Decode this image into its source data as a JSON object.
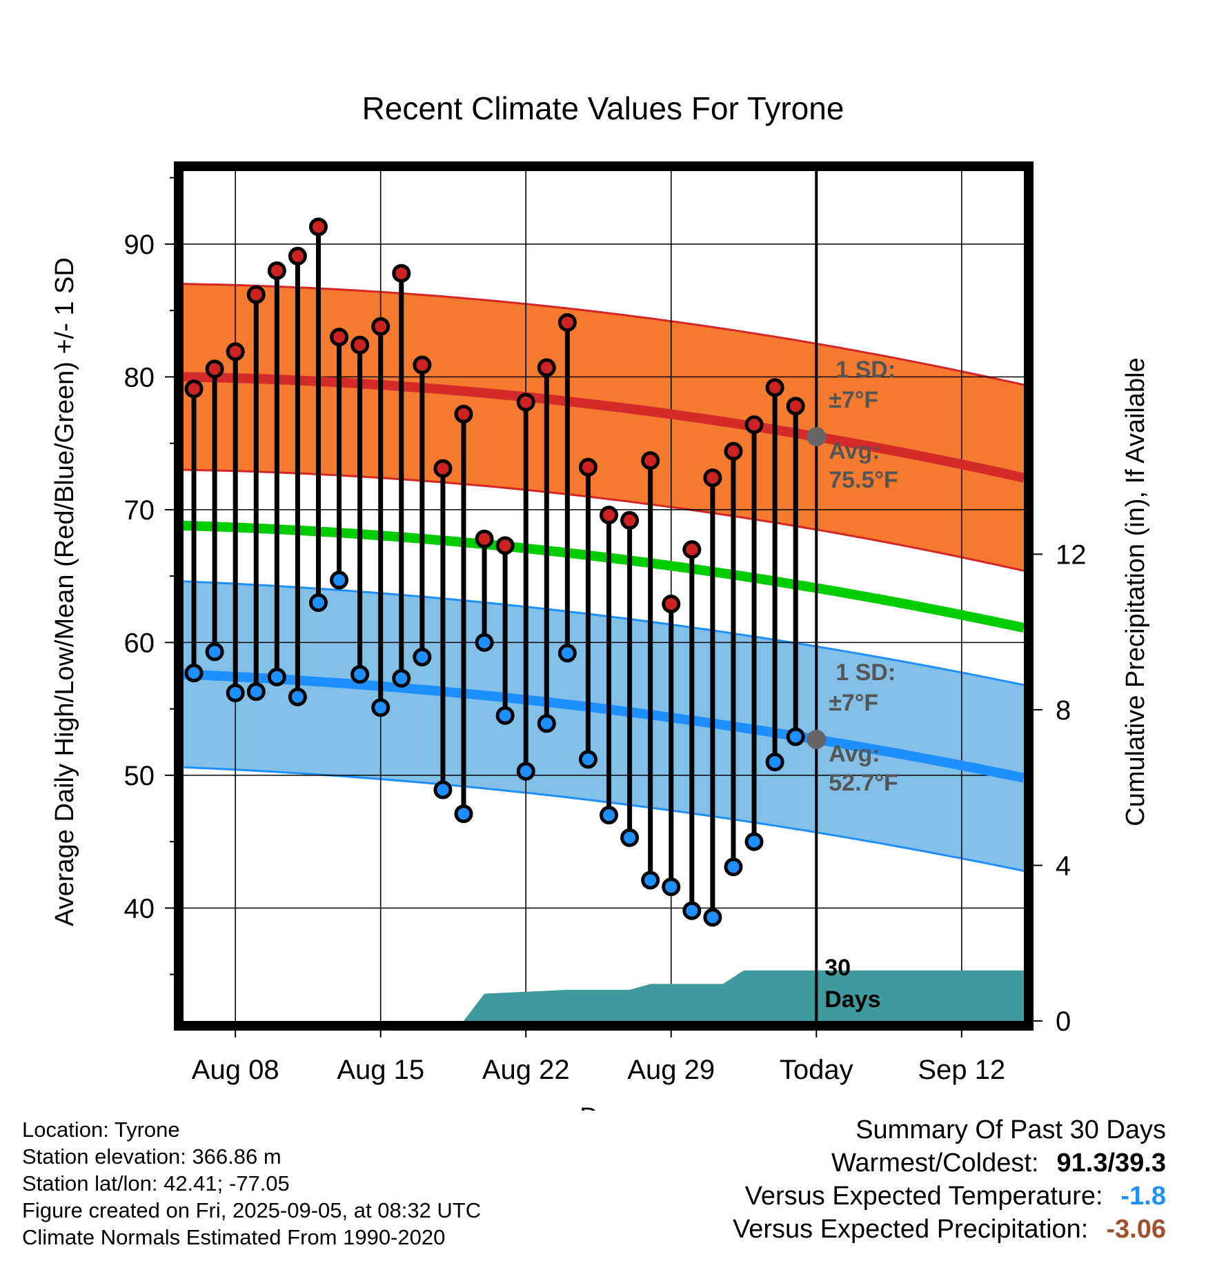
{
  "chart_data": {
    "type": "line",
    "title": "Recent Climate Values For Tyrone",
    "xlabel": "Day",
    "ylabel": "Average Daily High/Low/Mean (Red/Blue/Green) +/- 1 SD",
    "y2label": "Cumulative Precipitation (in), If Available",
    "x_tick_labels": [
      "Aug 08",
      "Aug 15",
      "Aug 22",
      "Aug 29",
      "Today",
      "Sep 12"
    ],
    "x_tick_days": [
      3,
      10,
      17,
      24,
      31,
      38
    ],
    "x_range_days": [
      0.5,
      41
    ],
    "today_day": 31,
    "ylim": [
      31.5,
      95.5
    ],
    "y_ticks": [
      40,
      50,
      60,
      70,
      80,
      90
    ],
    "y2lim": [
      0,
      21.85
    ],
    "y2_ticks": [
      0,
      4,
      8,
      12
    ],
    "grid": true,
    "days_offset": 1,
    "highs": [
      79.1,
      80.6,
      81.9,
      86.2,
      88.0,
      89.1,
      91.3,
      83.0,
      82.4,
      83.8,
      87.8,
      80.9,
      73.1,
      77.2,
      67.8,
      67.3,
      78.1,
      80.7,
      84.1,
      73.2,
      69.6,
      69.2,
      73.7,
      62.9,
      67.0,
      72.4,
      74.4,
      76.4,
      79.2,
      77.8
    ],
    "lows": [
      57.7,
      59.3,
      56.2,
      56.3,
      57.4,
      55.9,
      63.0,
      64.7,
      57.6,
      55.1,
      57.3,
      58.9,
      48.9,
      47.1,
      60.0,
      54.5,
      50.3,
      53.9,
      59.2,
      51.2,
      47.0,
      45.3,
      42.1,
      41.6,
      39.8,
      39.3,
      43.1,
      45.0,
      51.0,
      52.9
    ],
    "normal_high": {
      "start": 80.0,
      "today": 75.5,
      "end": 72.4
    },
    "normal_low": {
      "start": 57.6,
      "today": 52.7,
      "end": 49.8
    },
    "normal_mean": {
      "start": 68.8,
      "today": 64.1,
      "end": 61.1
    },
    "high_sd": 7,
    "low_sd": 7,
    "precip_cumulative": [
      {
        "day": 14,
        "value": 0
      },
      {
        "day": 15,
        "value": 0.7
      },
      {
        "day": 19,
        "value": 0.8
      },
      {
        "day": 22,
        "value": 0.8
      },
      {
        "day": 23,
        "value": 0.95
      },
      {
        "day": 26.5,
        "value": 0.95
      },
      {
        "day": 27.5,
        "value": 1.3
      },
      {
        "day": 41,
        "value": 1.3
      }
    ],
    "annotations": {
      "high_sd_line1": "1 SD:",
      "high_sd_line2": "±7°F",
      "high_avg_line1": "Avg:",
      "high_avg_line2": "75.5°F",
      "low_sd_line1": "1 SD:",
      "low_sd_line2": "±7°F",
      "low_avg_line1": "Avg:",
      "low_avg_line2": "52.7°F",
      "days_line1": "30",
      "days_line2": "Days"
    },
    "colors": {
      "high_band": "#f47a30",
      "high_edge": "#d62525",
      "high_line": "#d42a2a",
      "low_band": "#82c0e8",
      "low_edge": "#1e8fff",
      "low_line": "#1e8fff",
      "mean_line": "#00cc00",
      "precip": "#3e9a9c",
      "high_dot": "#cc2222",
      "low_dot": "#1e8fff",
      "annotation": "#555555"
    }
  },
  "footer": {
    "location": "Location: Tyrone",
    "elevation": "Station elevation: 366.86 m",
    "latlon": "Station lat/lon: 42.41; -77.05",
    "created": "Figure created on Fri, 2025-09-05, at 08:32 UTC",
    "normals": "Climate Normals Estimated From 1990-2020"
  },
  "summary": {
    "title": "Summary Of Past 30 Days",
    "warmest_label": "Warmest/Coldest:",
    "warmest_value": "91.3/39.3",
    "temp_label": "Versus Expected Temperature:",
    "temp_value": "-1.8",
    "precip_label": "Versus Expected Precipitation:",
    "precip_value": "-3.06"
  }
}
